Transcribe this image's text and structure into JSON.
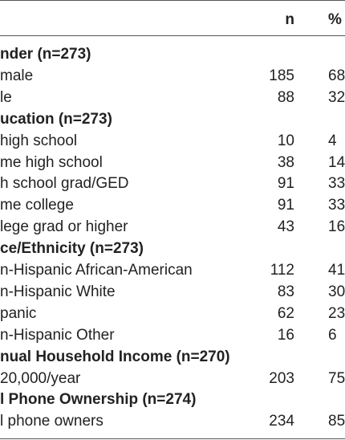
{
  "table": {
    "header": {
      "n": "n",
      "pct": "%"
    },
    "rows": [
      {
        "label": "nder (n=273)",
        "bold": true
      },
      {
        "label": "male",
        "n": 185,
        "pct": 68
      },
      {
        "label": "le",
        "n": 88,
        "pct": 32
      },
      {
        "label": "ucation (n=273)",
        "bold": true
      },
      {
        "label": "high school",
        "n": 10,
        "pct": 4
      },
      {
        "label": "me high school",
        "n": 38,
        "pct": 14
      },
      {
        "label": "h school grad/GED",
        "n": 91,
        "pct": 33
      },
      {
        "label": "me college",
        "n": 91,
        "pct": 33
      },
      {
        "label": "lege grad or higher",
        "n": 43,
        "pct": 16
      },
      {
        "label": "ce/Ethnicity (n=273)",
        "bold": true
      },
      {
        "label": "n-Hispanic African-American",
        "n": 112,
        "pct": 41
      },
      {
        "label": "n-Hispanic White",
        "n": 83,
        "pct": 30
      },
      {
        "label": "panic",
        "n": 62,
        "pct": 23
      },
      {
        "label": "n-Hispanic Other",
        "n": 16,
        "pct": 6
      },
      {
        "label": "nual Household Income (n=270)",
        "bold": true
      },
      {
        "label": "20,000/year",
        "n": 203,
        "pct": 75
      },
      {
        "label": "l Phone Ownership (n=274)",
        "bold": true
      },
      {
        "label": "l phone owners",
        "n": 234,
        "pct": 85
      }
    ]
  }
}
